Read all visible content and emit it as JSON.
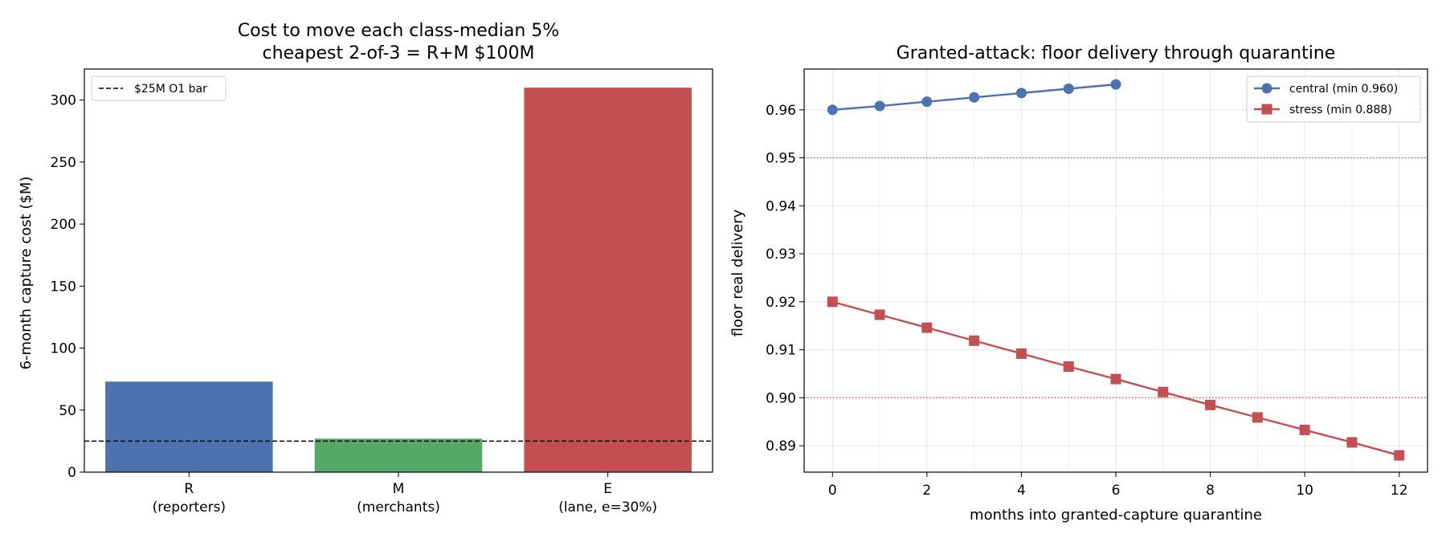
{
  "chart_data": [
    {
      "type": "bar",
      "title_lines": [
        "Cost to move each class-median 5%",
        "cheapest 2-of-3 = R+M $100M"
      ],
      "xlabel": "",
      "ylabel": "6-month capture cost ($M)",
      "categories": [
        {
          "label": "R",
          "sublabel": "(reporters)"
        },
        {
          "label": "M",
          "sublabel": "(merchants)"
        },
        {
          "label": "E",
          "sublabel": "(lane, e=30%)"
        }
      ],
      "values": [
        73,
        27,
        310
      ],
      "colors": [
        "#4c72b0",
        "#55a868",
        "#c44e52"
      ],
      "ylim": [
        0,
        325
      ],
      "yticks": [
        0,
        50,
        100,
        150,
        200,
        250,
        300
      ],
      "reference_line": {
        "value": 25,
        "label": "$25M O1 bar",
        "style": "dashed",
        "color": "#000000"
      },
      "legend_position": "top-left",
      "grid": false
    },
    {
      "type": "line",
      "title": "Granted-attack: floor delivery through quarantine",
      "xlabel": "months into granted-capture quarantine",
      "ylabel": "floor real delivery",
      "xlim": [
        -0.6,
        12.6
      ],
      "ylim": [
        0.8845,
        0.9685
      ],
      "xticks": [
        0,
        2,
        4,
        6,
        8,
        10,
        12
      ],
      "yticks": [
        0.89,
        0.9,
        0.91,
        0.92,
        0.93,
        0.94,
        0.95,
        0.96
      ],
      "ytick_labels": [
        "0.89",
        "0.90",
        "0.91",
        "0.92",
        "0.93",
        "0.94",
        "0.95",
        "0.96"
      ],
      "series": [
        {
          "name": "central (min 0.960)",
          "color": "#4c72b0",
          "marker": "circle",
          "x": [
            0,
            1,
            2,
            3,
            4,
            5,
            6
          ],
          "y": [
            0.96,
            0.9608,
            0.9617,
            0.9626,
            0.9635,
            0.9644,
            0.9653
          ]
        },
        {
          "name": "stress (min 0.888)",
          "color": "#c44e52",
          "marker": "square",
          "x": [
            0,
            1,
            2,
            3,
            4,
            5,
            6,
            7,
            8,
            9,
            10,
            11,
            12
          ],
          "y": [
            0.92,
            0.9173,
            0.9146,
            0.9119,
            0.9092,
            0.9065,
            0.9039,
            0.9012,
            0.8985,
            0.8959,
            0.8933,
            0.8907,
            0.888
          ]
        }
      ],
      "reference_lines": [
        {
          "value": 0.95,
          "color": "#4c72b0",
          "style": "dotted"
        },
        {
          "value": 0.9,
          "color": "#c44e52",
          "style": "dotted"
        }
      ],
      "legend_position": "top-right",
      "grid": true
    }
  ]
}
